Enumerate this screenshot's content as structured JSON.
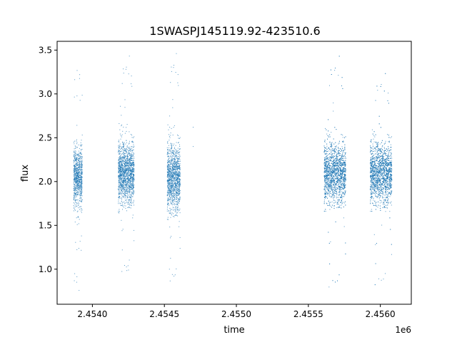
{
  "chart_data": {
    "type": "scatter",
    "title": "1SWASPJ145119.92-423510.6",
    "xlabel": "time",
    "ylabel": "flux",
    "x_offset_label": "1e6",
    "xlim": [
      2453755,
      2456215
    ],
    "ylim": [
      0.6,
      3.6
    ],
    "x_ticks": [
      2.454,
      2.4545,
      2.455,
      2.4555,
      2.456
    ],
    "x_tick_labels": [
      "2.4540",
      "2.4545",
      "2.4550",
      "2.4555",
      "2.4560"
    ],
    "y_ticks": [
      1.0,
      1.5,
      2.0,
      2.5,
      3.0,
      3.5
    ],
    "y_tick_labels": [
      "1.0",
      "1.5",
      "2.0",
      "2.5",
      "3.0",
      "3.5"
    ],
    "grid": false,
    "point_color": "#1f77b4",
    "observing_seasons": [
      {
        "x_start": 2453870,
        "x_end": 2453930,
        "flux_median": 2.05,
        "flux_spread": 0.2,
        "flux_min": 0.75,
        "flux_max": 3.4
      },
      {
        "x_start": 2454180,
        "x_end": 2454290,
        "flux_median": 2.1,
        "flux_spread": 0.2,
        "flux_min": 0.93,
        "flux_max": 3.45
      },
      {
        "x_start": 2454520,
        "x_end": 2454610,
        "flux_median": 2.05,
        "flux_spread": 0.22,
        "flux_min": 0.82,
        "flux_max": 3.48
      },
      {
        "x_start": 2455610,
        "x_end": 2455760,
        "flux_median": 2.1,
        "flux_spread": 0.2,
        "flux_min": 0.75,
        "flux_max": 3.45
      },
      {
        "x_start": 2455930,
        "x_end": 2456080,
        "flux_median": 2.1,
        "flux_spread": 0.2,
        "flux_min": 0.78,
        "flux_max": 3.25
      }
    ],
    "sample_points": [
      {
        "x": 2454700,
        "y": 2.62
      },
      {
        "x": 2454700,
        "y": 2.4
      },
      {
        "x": 2454535,
        "y": 1.0
      }
    ]
  }
}
